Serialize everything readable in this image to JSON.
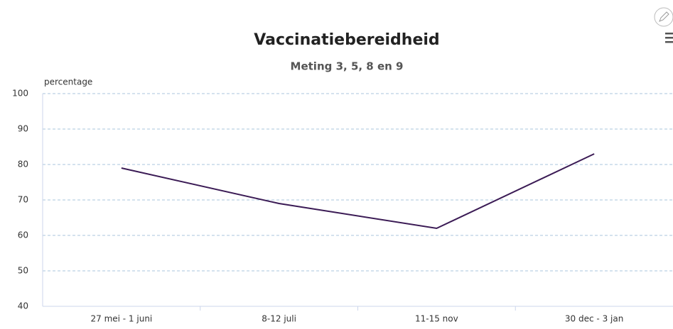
{
  "chart_data": {
    "type": "line",
    "title": "Vaccinatiebereidheid",
    "subtitle": "Meting 3, 5, 8 en 9",
    "y_label": "percentage",
    "categories": [
      "27 mei - 1 juni",
      "8-12 juli",
      "11-15 nov",
      "30 dec - 3 jan"
    ],
    "values": [
      79,
      69,
      62,
      83
    ],
    "color": "#3b1b55",
    "ylim": [
      40,
      100
    ],
    "yticks": [
      40,
      50,
      60,
      70,
      80,
      90,
      100
    ],
    "grid": true
  }
}
